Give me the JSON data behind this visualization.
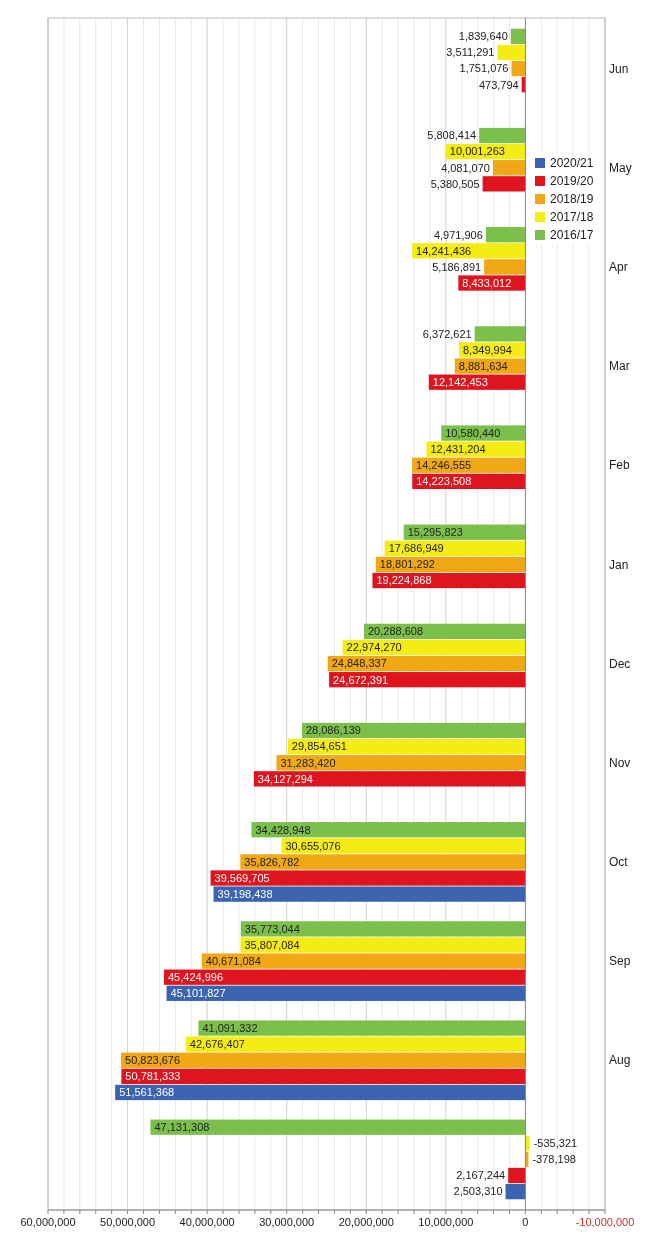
{
  "chart_data": {
    "type": "bar",
    "orientation": "horizontal",
    "categories": [
      "Jun",
      "May",
      "Apr",
      "Mar",
      "Feb",
      "Jan",
      "Dec",
      "Nov",
      "Oct",
      "Sep",
      "Aug",
      null
    ],
    "series": [
      {
        "name": "2020/21",
        "color": "#3a64b0",
        "values": [
          null,
          null,
          null,
          null,
          null,
          null,
          null,
          null,
          39198438,
          45101827,
          51561368,
          2503310
        ],
        "value_labels": [
          null,
          null,
          null,
          null,
          null,
          null,
          null,
          null,
          "39,198,438",
          "45,101,827",
          "51,561,368",
          "2,503,310"
        ]
      },
      {
        "name": "2019/20",
        "color": "#e0141e",
        "values": [
          473794,
          5380505,
          8433012,
          12142453,
          14223508,
          19224868,
          24672391,
          34127294,
          39569705,
          45424996,
          50781333,
          2167244
        ],
        "value_labels": [
          "473,794",
          "5,380,505",
          "8,433,012",
          "12,142,453",
          "14,223,508",
          "19,224,868",
          "24,672,391",
          "34,127,294",
          "39,569,705",
          "45,424,996",
          "50,781,333",
          "2,167,244"
        ]
      },
      {
        "name": "2018/19",
        "color": "#f0a814",
        "values": [
          1751076,
          4081070,
          5186891,
          8881634,
          14246555,
          18801292,
          24848337,
          31283420,
          35826782,
          40671084,
          50823676,
          -378198
        ],
        "value_labels": [
          "1,751,076",
          "4,081,070",
          "5,186,891",
          "8,881,634",
          "14,246,555",
          "18,801,292",
          "24,848,337",
          "31,283,420",
          "35,826,782",
          "40,671,084",
          "50,823,676",
          "-378,198"
        ]
      },
      {
        "name": "2017/18",
        "color": "#f5ec14",
        "values": [
          3511291,
          10001263,
          14241436,
          8349994,
          12431204,
          17686949,
          22974270,
          29854651,
          30655076,
          35807084,
          42676407,
          -535321
        ],
        "value_labels": [
          "3,511,291",
          "10,001,263",
          "14,241,436",
          "8,349,994",
          "12,431,204",
          "17,686,949",
          "22,974,270",
          "29,854,651",
          "30,655,076",
          "35,807,084",
          "42,676,407",
          "-535,321"
        ]
      },
      {
        "name": "2016/17",
        "color": "#7cc04c",
        "values": [
          1839640,
          5808414,
          4971906,
          6372621,
          10580440,
          15295823,
          20288608,
          28086139,
          34428948,
          35773044,
          41091332,
          47131308
        ],
        "value_labels": [
          "1,839,640",
          "5,808,414",
          "4,971,906",
          "6,372,621",
          "10,580,440",
          "15,295,823",
          "20,288,608",
          "28,086,139",
          "34,428,948",
          "35,773,044",
          "41,091,332",
          "47,131,308"
        ]
      }
    ],
    "xlim": [
      60000000,
      -10000000
    ],
    "xticks": [
      {
        "value": 60000000,
        "label": "60,000,000"
      },
      {
        "value": 58000000,
        "label": null
      },
      {
        "value": 56000000,
        "label": null
      },
      {
        "value": 54000000,
        "label": null
      },
      {
        "value": 52000000,
        "label": null
      },
      {
        "value": 50000000,
        "label": "50,000,000"
      },
      {
        "value": 48000000,
        "label": null
      },
      {
        "value": 46000000,
        "label": null
      },
      {
        "value": 44000000,
        "label": null
      },
      {
        "value": 42000000,
        "label": null
      },
      {
        "value": 40000000,
        "label": "40,000,000"
      },
      {
        "value": 38000000,
        "label": null
      },
      {
        "value": 36000000,
        "label": null
      },
      {
        "value": 34000000,
        "label": null
      },
      {
        "value": 32000000,
        "label": null
      },
      {
        "value": 30000000,
        "label": "30,000,000"
      },
      {
        "value": 28000000,
        "label": null
      },
      {
        "value": 26000000,
        "label": null
      },
      {
        "value": 24000000,
        "label": null
      },
      {
        "value": 22000000,
        "label": null
      },
      {
        "value": 20000000,
        "label": "20,000,000"
      },
      {
        "value": 18000000,
        "label": null
      },
      {
        "value": 16000000,
        "label": null
      },
      {
        "value": 14000000,
        "label": null
      },
      {
        "value": 12000000,
        "label": null
      },
      {
        "value": 10000000,
        "label": "10,000,000"
      },
      {
        "value": 8000000,
        "label": null
      },
      {
        "value": 6000000,
        "label": null
      },
      {
        "value": 4000000,
        "label": null
      },
      {
        "value": 2000000,
        "label": null
      },
      {
        "value": 0,
        "label": "0"
      },
      {
        "value": -2000000,
        "label": null
      },
      {
        "value": -4000000,
        "label": null
      },
      {
        "value": -6000000,
        "label": null
      },
      {
        "value": -8000000,
        "label": null
      },
      {
        "value": -10000000,
        "label": "-10,000,000"
      }
    ],
    "grid": true,
    "legend": "top right"
  }
}
